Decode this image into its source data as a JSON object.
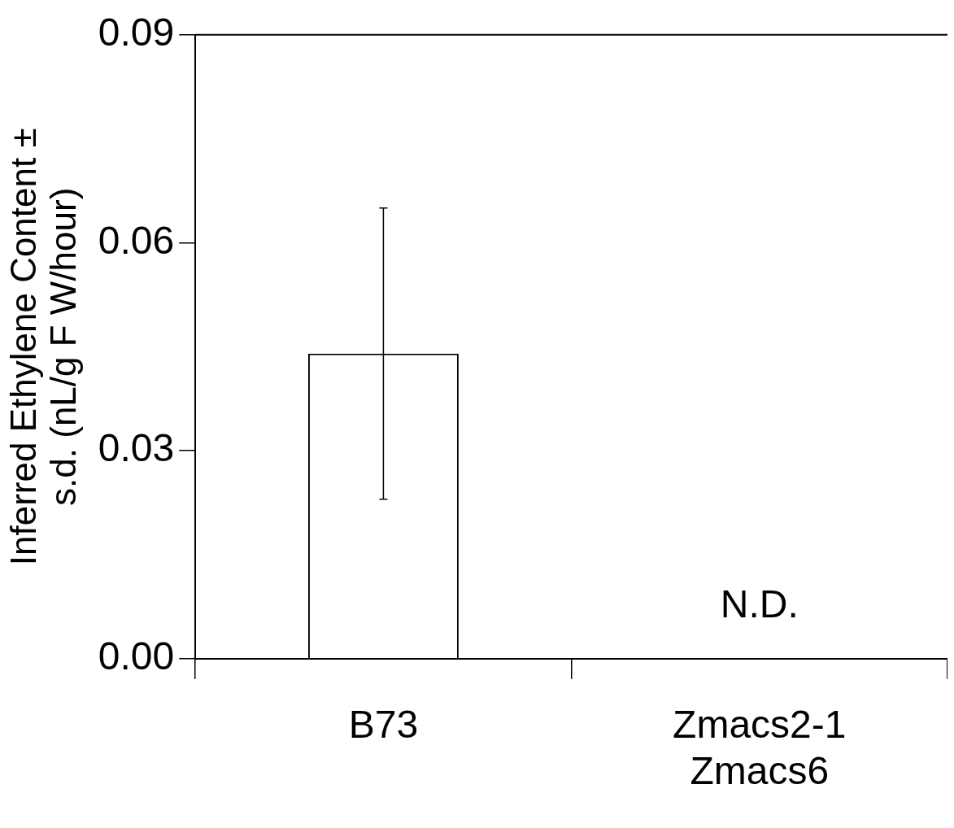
{
  "chart_data": {
    "type": "bar",
    "ylabel": "Inferred Ethylene Content ± s.d. (nL/g F W/hour)",
    "categories": [
      "B73",
      "Zmacs2-1 Zmacs6"
    ],
    "values": [
      0.044,
      null
    ],
    "errors": [
      0.021,
      null
    ],
    "color": "#ffffff",
    "ylim": [
      0,
      0.09
    ],
    "yticks": [
      {
        "value": 0,
        "label": "0.00"
      },
      {
        "value": 0.03,
        "label": "0.03"
      },
      {
        "value": 0.06,
        "label": "0.06"
      },
      {
        "value": 0.09,
        "label": "0.09"
      }
    ],
    "grid": false,
    "legend": false,
    "annotations": [
      "N.D."
    ]
  }
}
